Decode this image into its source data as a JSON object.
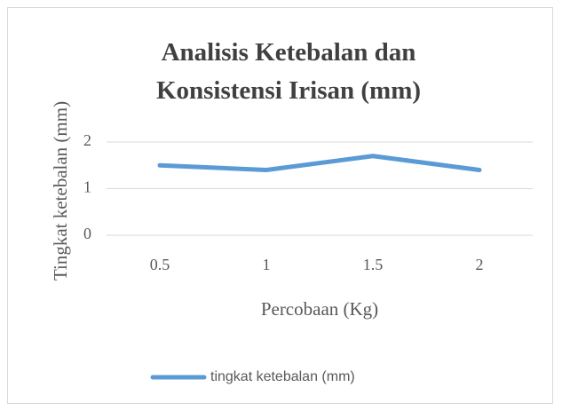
{
  "chart_data": {
    "type": "line",
    "title": "Analisis Ketebalan dan Konsistensi Irisan (mm)",
    "x_label": "Percobaan (Kg)",
    "y_label": "Tingkat ketebalan (mm)",
    "categories": [
      "0.5",
      "1",
      "1.5",
      "2"
    ],
    "series": [
      {
        "name": "tingkat ketebalan (mm)",
        "color": "#5b9bd5",
        "values": [
          1.5,
          1.4,
          1.7,
          1.4
        ]
      }
    ],
    "ylim": [
      0,
      2
    ],
    "yticks": [
      0,
      1,
      2
    ],
    "grid": true,
    "legend": "bottom"
  }
}
